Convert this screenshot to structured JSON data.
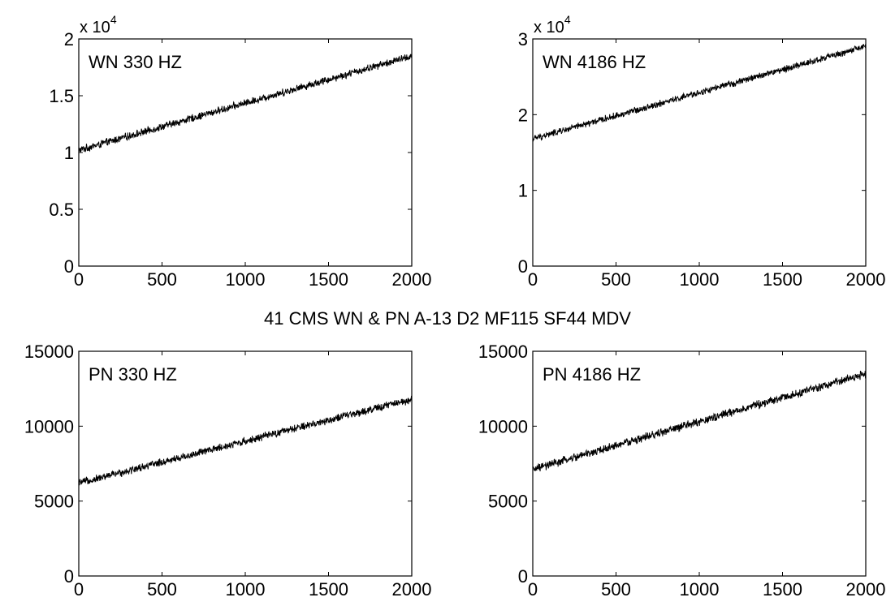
{
  "figure": {
    "suptitle": "41 CMS WN & PN A-13 D2 MF115 SF44 MDV",
    "line_color": "#000000",
    "background": "#ffffff"
  },
  "chart_data": [
    {
      "type": "line",
      "panel_label": "WN 330 HZ",
      "x_range": [
        0,
        2000
      ],
      "ylim": [
        0,
        20000
      ],
      "x_ticks": [
        0,
        500,
        1000,
        1500,
        2000
      ],
      "x_tick_labels": [
        "0",
        "500",
        "1000",
        "1500",
        "2000"
      ],
      "y_ticks": [
        0,
        5000,
        10000,
        15000,
        20000
      ],
      "y_tick_labels": [
        "0",
        "0.5",
        "1",
        "1.5",
        "2"
      ],
      "y_exponent_base": "x 10",
      "y_exponent_power": "4",
      "grid": false,
      "series": [
        {
          "start": 10200,
          "end": 18500,
          "noise": 280
        }
      ]
    },
    {
      "type": "line",
      "panel_label": "WN 4186 HZ",
      "x_range": [
        0,
        2000
      ],
      "ylim": [
        0,
        30000
      ],
      "x_ticks": [
        0,
        500,
        1000,
        1500,
        2000
      ],
      "x_tick_labels": [
        "0",
        "500",
        "1000",
        "1500",
        "2000"
      ],
      "y_ticks": [
        0,
        10000,
        20000,
        30000
      ],
      "y_tick_labels": [
        "0",
        "1",
        "2",
        "3"
      ],
      "y_exponent_base": "x 10",
      "y_exponent_power": "4",
      "grid": false,
      "series": [
        {
          "start": 16800,
          "end": 29000,
          "noise": 380
        }
      ]
    },
    {
      "type": "line",
      "panel_label": "PN 330 HZ",
      "x_range": [
        0,
        2000
      ],
      "ylim": [
        0,
        15000
      ],
      "x_ticks": [
        0,
        500,
        1000,
        1500,
        2000
      ],
      "x_tick_labels": [
        "0",
        "500",
        "1000",
        "1500",
        "2000"
      ],
      "y_ticks": [
        0,
        5000,
        10000,
        15000
      ],
      "y_tick_labels": [
        "0",
        "5000",
        "10000",
        "15000"
      ],
      "grid": false,
      "series": [
        {
          "start": 6200,
          "end": 11800,
          "noise": 220
        }
      ]
    },
    {
      "type": "line",
      "panel_label": "PN 4186 HZ",
      "x_range": [
        0,
        2000
      ],
      "ylim": [
        0,
        15000
      ],
      "x_ticks": [
        0,
        500,
        1000,
        1500,
        2000
      ],
      "x_tick_labels": [
        "0",
        "500",
        "1000",
        "1500",
        "2000"
      ],
      "y_ticks": [
        0,
        5000,
        10000,
        15000
      ],
      "y_tick_labels": [
        "0",
        "5000",
        "10000",
        "15000"
      ],
      "grid": false,
      "series": [
        {
          "start": 7100,
          "end": 13500,
          "noise": 240
        }
      ]
    }
  ]
}
